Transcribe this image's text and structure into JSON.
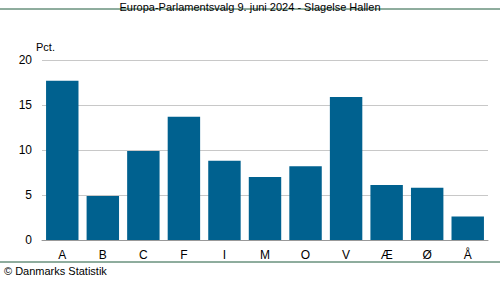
{
  "chart_data": {
    "type": "bar",
    "title": "Europa-Parlamentsvalg 9. juni 2024 - Slagelse Hallen",
    "ylabel": "Pct.",
    "annotations": [
      "© Danmarks Statistik"
    ],
    "categories": [
      "A",
      "B",
      "C",
      "F",
      "I",
      "M",
      "O",
      "V",
      "Æ",
      "Ø",
      "Å"
    ],
    "values": [
      17.7,
      4.9,
      9.9,
      13.7,
      8.8,
      7.0,
      8.2,
      15.9,
      6.1,
      5.8,
      2.6
    ],
    "color": "#00618f",
    "ylim": [
      0,
      20
    ],
    "yticks": [
      0,
      5,
      10,
      15,
      20
    ],
    "grid": true
  }
}
